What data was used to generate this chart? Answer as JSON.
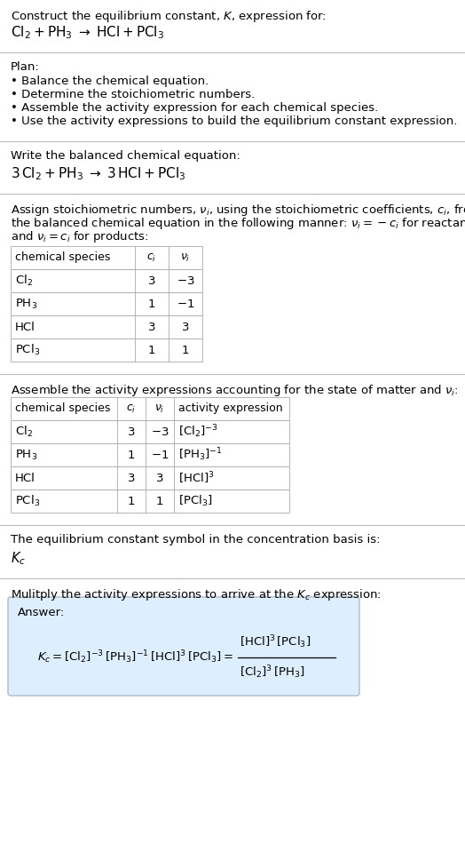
{
  "title_line1": "Construct the equilibrium constant, $K$, expression for:",
  "title_line2": "$\\mathrm{Cl_2 + PH_3 \\;\\rightarrow\\; HCl + PCl_3}$",
  "plan_header": "Plan:",
  "plan_items": [
    "• Balance the chemical equation.",
    "• Determine the stoichiometric numbers.",
    "• Assemble the activity expression for each chemical species.",
    "• Use the activity expressions to build the equilibrium constant expression."
  ],
  "balanced_header": "Write the balanced chemical equation:",
  "balanced_eq": "$\\mathrm{3\\,Cl_2 + PH_3 \\;\\rightarrow\\; 3\\,HCl + PCl_3}$",
  "stoich_intro_lines": [
    "Assign stoichiometric numbers, $\\nu_i$, using the stoichiometric coefficients, $c_i$, from",
    "the balanced chemical equation in the following manner: $\\nu_i = -c_i$ for reactants",
    "and $\\nu_i = c_i$ for products:"
  ],
  "table1_headers": [
    "chemical species",
    "$c_i$",
    "$\\nu_i$"
  ],
  "table1_rows": [
    [
      "$\\mathrm{Cl_2}$",
      "3",
      "$-3$"
    ],
    [
      "$\\mathrm{PH_3}$",
      "1",
      "$-1$"
    ],
    [
      "HCl",
      "3",
      "3"
    ],
    [
      "$\\mathrm{PCl_3}$",
      "1",
      "1"
    ]
  ],
  "assemble_header": "Assemble the activity expressions accounting for the state of matter and $\\nu_i$:",
  "table2_headers": [
    "chemical species",
    "$c_i$",
    "$\\nu_i$",
    "activity expression"
  ],
  "table2_rows": [
    [
      "$\\mathrm{Cl_2}$",
      "3",
      "$-3$",
      "$[\\mathrm{Cl_2}]^{-3}$"
    ],
    [
      "$\\mathrm{PH_3}$",
      "1",
      "$-1$",
      "$[\\mathrm{PH_3}]^{-1}$"
    ],
    [
      "HCl",
      "3",
      "3",
      "$[\\mathrm{HCl}]^3$"
    ],
    [
      "$\\mathrm{PCl_3}$",
      "1",
      "1",
      "$[\\mathrm{PCl_3}]$"
    ]
  ],
  "kc_symbol_header": "The equilibrium constant symbol in the concentration basis is:",
  "kc_symbol": "$K_c$",
  "multiply_header": "Mulitply the activity expressions to arrive at the $K_c$ expression:",
  "answer_label": "Answer:",
  "kc_eq_left": "$K_c = [\\mathrm{Cl_2}]^{-3}\\,[\\mathrm{PH_3}]^{-1}\\,[\\mathrm{HCl}]^3\\,[\\mathrm{PCl_3}] = $",
  "kc_fraction_num": "$[\\mathrm{HCl}]^3\\,[\\mathrm{PCl_3}]$",
  "kc_fraction_den": "$[\\mathrm{Cl_2}]^3\\,[\\mathrm{PH_3}]$",
  "bg_color": "#ffffff",
  "answer_box_color": "#ddeeff",
  "separator_color": "#bbbbbb",
  "text_color": "#000000",
  "font_size": 9.5
}
